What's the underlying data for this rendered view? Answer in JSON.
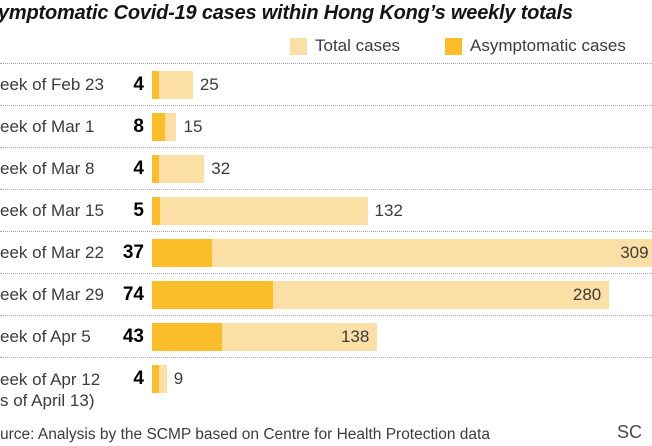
{
  "title": "ymptomatic Covid-19 cases within Hong Kong’s weekly totals",
  "legend": [
    {
      "label": "Total cases",
      "color": "#fbdfa4"
    },
    {
      "label": "Asymptomatic cases",
      "color": "#fcbd2b"
    }
  ],
  "source": "urce: Analysis by the SCMP based on Centre for Health Protection data",
  "credit": "SC",
  "chart_data": {
    "type": "bar",
    "orientation": "horizontal",
    "title": "ymptomatic Covid-19 cases within Hong Kong’s weekly totals",
    "legend_entries": [
      "Total cases",
      "Asymptomatic cases"
    ],
    "legend_position": "top",
    "grid": "dotted-row-separators",
    "x_range_cases": [
      0,
      309
    ],
    "colors": {
      "total": "#fbdfa4",
      "asymptomatic": "#fcbd2b"
    },
    "categories": [
      "eek of Feb 23",
      "eek of Mar 1",
      "eek of Mar 8",
      "eek of Mar 15",
      "eek of Mar 22",
      "eek of Mar 29",
      "eek of Apr 5",
      "eek of Apr 12"
    ],
    "series": [
      {
        "name": "Asymptomatic cases",
        "values": [
          4,
          8,
          4,
          5,
          37,
          74,
          43,
          4
        ]
      },
      {
        "name": "Total cases",
        "values": [
          25,
          15,
          32,
          132,
          309,
          280,
          138,
          9
        ]
      }
    ],
    "rows": [
      {
        "label": "eek of Feb 23",
        "label2": "",
        "asymptomatic": 4,
        "total": 25,
        "value_label_inside": false
      },
      {
        "label": "eek of Mar 1",
        "label2": "",
        "asymptomatic": 8,
        "total": 15,
        "value_label_inside": false
      },
      {
        "label": "eek of Mar 8",
        "label2": "",
        "asymptomatic": 4,
        "total": 32,
        "value_label_inside": false
      },
      {
        "label": "eek of Mar 15",
        "label2": "",
        "asymptomatic": 5,
        "total": 132,
        "value_label_inside": false
      },
      {
        "label": "eek of Mar 22",
        "label2": "",
        "asymptomatic": 37,
        "total": 309,
        "value_label_inside": true
      },
      {
        "label": "eek of Mar 29",
        "label2": "",
        "asymptomatic": 74,
        "total": 280,
        "value_label_inside": true
      },
      {
        "label": "eek of Apr 5",
        "label2": "",
        "asymptomatic": 43,
        "total": 138,
        "value_label_inside": true
      },
      {
        "label": "eek of Apr 12",
        "label2": "s of April 13)",
        "asymptomatic": 4,
        "total": 9,
        "value_label_inside": false
      }
    ]
  }
}
